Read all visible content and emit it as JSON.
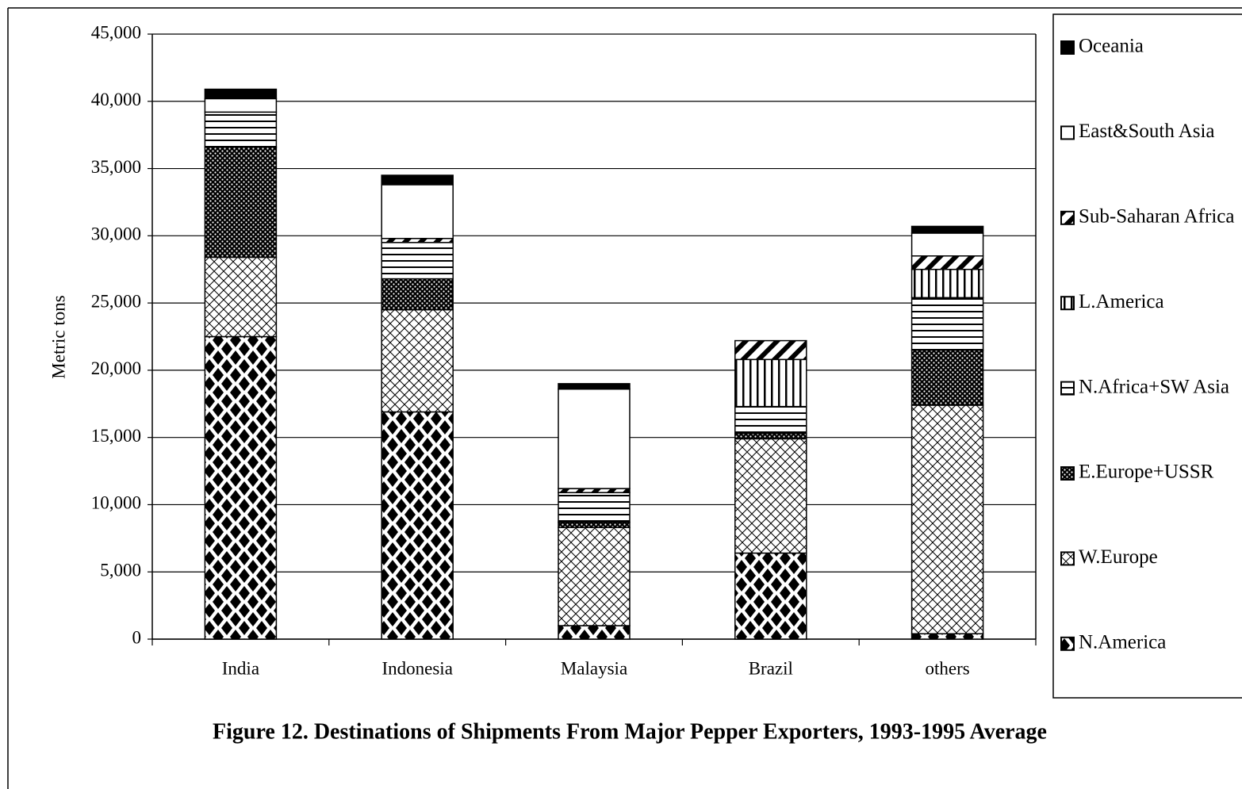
{
  "chart_data": {
    "type": "bar",
    "stacked": true,
    "title": "Figure 12. Destinations of Shipments From Major Pepper Exporters, 1993-1995 Average",
    "y_label": "Metric tons",
    "categories": [
      "India",
      "Indonesia",
      "Malaysia",
      "Brazil",
      "others"
    ],
    "series": [
      {
        "name": "N.America",
        "values": [
          22500,
          16900,
          1000,
          6400,
          400
        ]
      },
      {
        "name": "W.Europe",
        "values": [
          5900,
          7600,
          7300,
          8500,
          17000
        ]
      },
      {
        "name": "E.Europe+USSR",
        "values": [
          8200,
          2300,
          400,
          400,
          4100
        ]
      },
      {
        "name": "N.Africa+SW Asia",
        "values": [
          2600,
          2700,
          2200,
          2000,
          3900
        ]
      },
      {
        "name": "L.America",
        "values": [
          0,
          0,
          0,
          3500,
          2100
        ]
      },
      {
        "name": "Sub-Saharan Africa",
        "values": [
          0,
          300,
          300,
          1400,
          1000
        ]
      },
      {
        "name": "East&South Asia",
        "values": [
          1000,
          4000,
          7400,
          0,
          1700
        ]
      },
      {
        "name": "Oceania",
        "values": [
          700,
          700,
          400,
          0,
          500
        ]
      }
    ],
    "ylim": [
      0,
      45000
    ],
    "yticks": [
      0,
      {
        "value": 5000,
        "label": "5,000"
      },
      {
        "value": 10000,
        "label": "10,000"
      },
      {
        "value": 15000,
        "label": "15,000"
      },
      {
        "value": 20000,
        "label": "20,000"
      },
      {
        "value": 25000,
        "label": "25,000"
      },
      {
        "value": 30000,
        "label": "30,000"
      },
      {
        "value": 35000,
        "label": "35,000"
      },
      {
        "value": 40000,
        "label": "40,000"
      },
      {
        "value": 45000,
        "label": "45,000"
      }
    ],
    "grid": true,
    "legend": "right"
  }
}
